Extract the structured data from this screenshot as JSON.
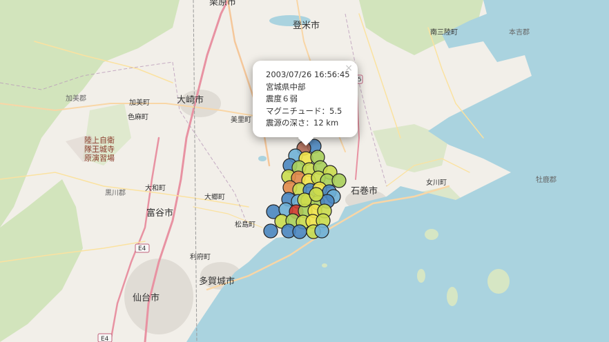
{
  "map": {
    "place_labels": [
      {
        "id": "kurihara",
        "text": "栗原市"
      },
      {
        "id": "tome",
        "text": "登米市"
      },
      {
        "id": "minamisanriku",
        "text": "南三陸町"
      },
      {
        "id": "motoyoshi",
        "text": "本吉郡"
      },
      {
        "id": "kami",
        "text": "加美町"
      },
      {
        "id": "kamigun",
        "text": "加美郡"
      },
      {
        "id": "osaki",
        "text": "大崎市"
      },
      {
        "id": "shikama",
        "text": "色麻町"
      },
      {
        "id": "misato",
        "text": "美里町"
      },
      {
        "id": "oshika",
        "text": "牡鹿郡"
      },
      {
        "id": "onagawa",
        "text": "女川町"
      },
      {
        "id": "ishinomaki",
        "text": "石巻市"
      },
      {
        "id": "jieitai1",
        "text": "陸上自衛"
      },
      {
        "id": "jieitai2",
        "text": "隊王城寺"
      },
      {
        "id": "jieitai3",
        "text": "原演習場"
      },
      {
        "id": "kurokawa",
        "text": "黒川郡"
      },
      {
        "id": "taiwa",
        "text": "大和町"
      },
      {
        "id": "osato",
        "text": "大郷町"
      },
      {
        "id": "tomiya",
        "text": "富谷市"
      },
      {
        "id": "matsushima",
        "text": "松島町"
      },
      {
        "id": "rifu",
        "text": "利府町"
      },
      {
        "id": "tagajo",
        "text": "多賀城市"
      },
      {
        "id": "sendai",
        "text": "仙台市"
      },
      {
        "id": "e4a",
        "text": "E4"
      },
      {
        "id": "e4b",
        "text": "E4"
      },
      {
        "id": "route5",
        "text": "5"
      }
    ],
    "marker_colors": {
      "blue": "#4a86c0",
      "lightblue": "#6fb0d6",
      "green": "#a8cf5a",
      "yellowgreen": "#cadc4e",
      "yellow": "#f0e34a",
      "orange": "#e0884a",
      "red": "#cf3a2c",
      "brownred": "#b06a56"
    },
    "water_color": "#aad3df",
    "land_color": "#f2efe9"
  },
  "popup": {
    "datetime": "2003/07/26 16:56:45",
    "region": "宮城県中部",
    "intensity": "震度６弱",
    "magnitude": "マグニチュード：5.5",
    "depth": "震源の深さ：12 km",
    "close_symbol": "×"
  }
}
